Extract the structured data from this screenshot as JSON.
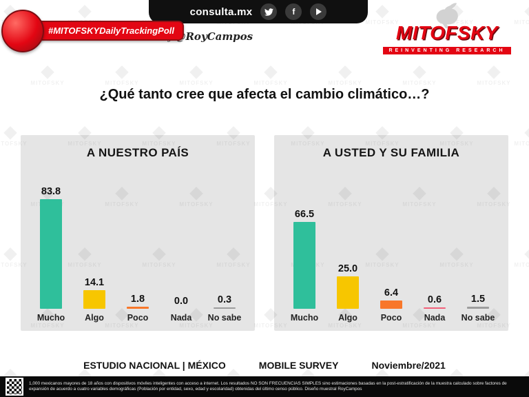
{
  "header": {
    "hashtag": "#MITOFSKYDailyTrackingPoll",
    "site": "consulta.mx",
    "byline_prefix": "by",
    "byline_name": "@RoyCampos",
    "brand": "MITOFSKY",
    "brand_tagline": "REINVENTING RESEARCH"
  },
  "watermark": "MITOFSKY",
  "title": "¿Qué tanto cree que afecta el cambio climático…?",
  "chart_data": [
    {
      "type": "bar",
      "title": "A NUESTRO PAÍS",
      "categories": [
        "Mucho",
        "Algo",
        "Poco",
        "Nada",
        "No sabe"
      ],
      "values": [
        83.8,
        14.1,
        1.8,
        0.0,
        0.3
      ],
      "ylim": [
        0,
        100
      ],
      "grid": false,
      "data_labels": true
    },
    {
      "type": "bar",
      "title": "A USTED Y SU FAMILIA",
      "categories": [
        "Mucho",
        "Algo",
        "Poco",
        "Nada",
        "No sabe"
      ],
      "values": [
        66.5,
        25.0,
        6.4,
        0.6,
        1.5
      ],
      "ylim": [
        0,
        100
      ],
      "grid": false,
      "data_labels": true
    }
  ],
  "colors": {
    "accent_red": "#e30613",
    "bar_colors": [
      "#2fbf9b",
      "#f7c600",
      "#f8772a",
      "#f2607a",
      "#9d9d9d"
    ]
  },
  "meta": {
    "study": "ESTUDIO NACIONAL  |  MÉXICO",
    "survey": "MOBILE SURVEY",
    "date": "Noviembre/2021"
  },
  "footer": {
    "note": "1,000 mexicanos mayores de 18 años con dispositivos móviles inteligentes con acceso a internet. Los resultados NO SON FRECUENCIAS SIMPLES sino estimaciones basadas en la post-estratificación de la muestra calculado sobre factores de expansión de acuerdo a cuatro variables demográficas (Población por entidad, sexo, edad y escolaridad) obtenidas del último censo público. Diseño muestral RoyCampos"
  }
}
